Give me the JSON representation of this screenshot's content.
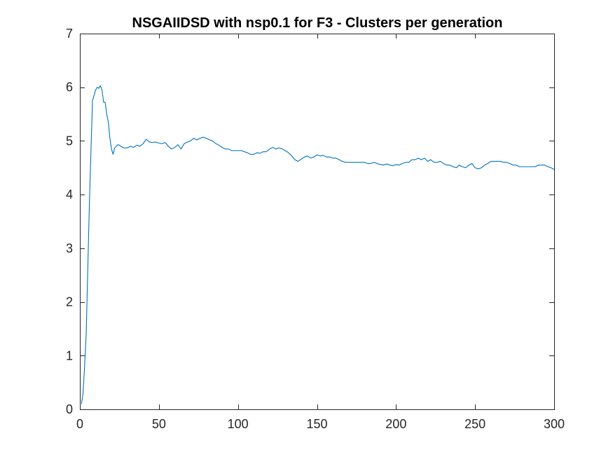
{
  "chart_data": {
    "type": "line",
    "title": "NSGAIIDSD with nsp0.1 for F3 - Clusters per generation",
    "xlabel": "",
    "ylabel": "",
    "xlim": [
      0,
      300
    ],
    "ylim": [
      0,
      7
    ],
    "xticks": [
      0,
      50,
      100,
      150,
      200,
      250,
      300
    ],
    "xtick_labels": [
      "0",
      "50",
      "100",
      "150",
      "200",
      "250",
      "300"
    ],
    "yticks": [
      0,
      1,
      2,
      3,
      4,
      5,
      6,
      7
    ],
    "ytick_labels": [
      "0",
      "1",
      "2",
      "3",
      "4",
      "5",
      "6",
      "7"
    ],
    "grid": false,
    "legend": "none",
    "line_color": "#0072BD",
    "series": [
      {
        "x": [
          1,
          2,
          3,
          4,
          5,
          6,
          7,
          8,
          9,
          10,
          11,
          12,
          13,
          14,
          15,
          16,
          17,
          18,
          19,
          20,
          21,
          22,
          23,
          24,
          25,
          26,
          27,
          28,
          30,
          32,
          34,
          36,
          38,
          40,
          42,
          44,
          46,
          48,
          50,
          52,
          54,
          56,
          58,
          60,
          62,
          64,
          66,
          68,
          70,
          72,
          74,
          76,
          78,
          80,
          82,
          84,
          86,
          88,
          90,
          92,
          94,
          96,
          98,
          100,
          102,
          104,
          106,
          108,
          110,
          112,
          114,
          116,
          118,
          120,
          122,
          124,
          126,
          128,
          130,
          132,
          134,
          136,
          138,
          140,
          142,
          144,
          146,
          148,
          150,
          152,
          154,
          156,
          158,
          160,
          162,
          164,
          166,
          168,
          170,
          172,
          174,
          176,
          178,
          180,
          182,
          184,
          186,
          188,
          190,
          192,
          194,
          196,
          198,
          200,
          202,
          204,
          206,
          208,
          210,
          212,
          214,
          216,
          218,
          220,
          222,
          224,
          226,
          228,
          230,
          232,
          234,
          236,
          238,
          240,
          242,
          244,
          246,
          248,
          250,
          252,
          254,
          256,
          258,
          260,
          262,
          264,
          266,
          268,
          270,
          272,
          274,
          276,
          278,
          280,
          282,
          284,
          286,
          288,
          290,
          292,
          294,
          296,
          298,
          300
        ],
        "y": [
          0.1,
          0.3,
          0.8,
          1.4,
          2.6,
          3.8,
          4.8,
          5.75,
          5.85,
          5.95,
          6.0,
          5.98,
          6.03,
          5.95,
          5.72,
          5.72,
          5.5,
          5.35,
          5.05,
          4.85,
          4.75,
          4.87,
          4.9,
          4.93,
          4.92,
          4.9,
          4.88,
          4.87,
          4.87,
          4.9,
          4.88,
          4.92,
          4.9,
          4.95,
          5.03,
          4.98,
          4.97,
          4.98,
          4.96,
          4.95,
          4.97,
          4.9,
          4.85,
          4.88,
          4.93,
          4.85,
          4.95,
          4.98,
          5.0,
          5.05,
          5.02,
          5.05,
          5.07,
          5.05,
          5.02,
          5.0,
          4.95,
          4.92,
          4.88,
          4.85,
          4.85,
          4.82,
          4.82,
          4.82,
          4.82,
          4.8,
          4.78,
          4.75,
          4.75,
          4.78,
          4.77,
          4.8,
          4.8,
          4.85,
          4.88,
          4.85,
          4.87,
          4.85,
          4.82,
          4.78,
          4.72,
          4.65,
          4.62,
          4.66,
          4.7,
          4.72,
          4.68,
          4.7,
          4.74,
          4.72,
          4.73,
          4.7,
          4.7,
          4.68,
          4.68,
          4.65,
          4.62,
          4.6,
          4.6,
          4.6,
          4.6,
          4.6,
          4.6,
          4.6,
          4.58,
          4.58,
          4.6,
          4.58,
          4.56,
          4.55,
          4.57,
          4.55,
          4.54,
          4.56,
          4.55,
          4.58,
          4.6,
          4.6,
          4.65,
          4.65,
          4.68,
          4.65,
          4.68,
          4.62,
          4.65,
          4.6,
          4.6,
          4.62,
          4.58,
          4.55,
          4.55,
          4.52,
          4.5,
          4.55,
          4.52,
          4.5,
          4.55,
          4.58,
          4.5,
          4.48,
          4.5,
          4.55,
          4.58,
          4.62,
          4.62,
          4.62,
          4.62,
          4.6,
          4.6,
          4.58,
          4.55,
          4.55,
          4.52,
          4.52,
          4.52,
          4.52,
          4.52,
          4.52,
          4.55,
          4.55,
          4.55,
          4.52,
          4.5,
          4.47
        ]
      }
    ]
  }
}
